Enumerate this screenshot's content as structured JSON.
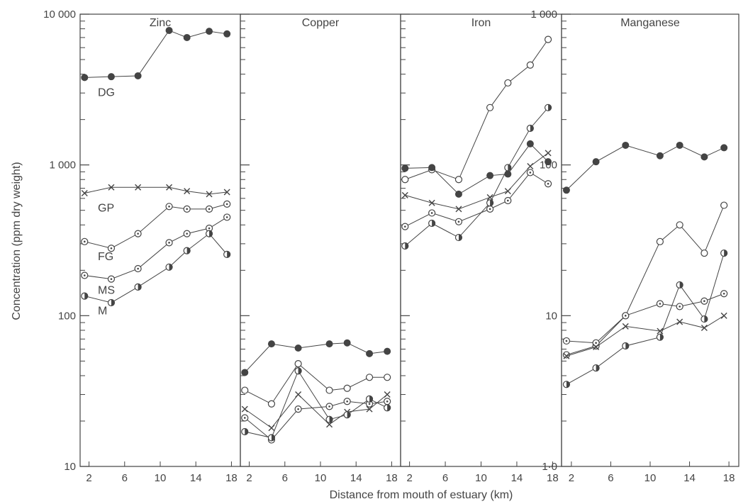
{
  "chart_data": {
    "type": "line",
    "xlabel": "Distance from mouth of estuary (km)",
    "ylabel": "Concentration (ppm dry weight)",
    "x_ticks": [
      2,
      6,
      10,
      14,
      18
    ],
    "xlim": [
      1,
      19
    ],
    "panels": [
      {
        "title": "Zinc",
        "ylim": [
          10,
          10000
        ],
        "y_ticks": [
          10,
          100,
          1000,
          10000
        ],
        "y_tick_labels": [
          "10",
          "100",
          "1 000",
          "10 000"
        ],
        "show_series_labels": true,
        "series": [
          {
            "name": "DG",
            "marker": "filled",
            "x": [
              1.5,
              4.5,
              7.5,
              11,
              13,
              15.5,
              17.5
            ],
            "values": [
              3800,
              3850,
              3900,
              7800,
              7000,
              7700,
              7400
            ]
          },
          {
            "name": "GP",
            "marker": "cross",
            "x": [
              1.5,
              4.5,
              7.5,
              11,
              13,
              15.5,
              17.5
            ],
            "values": [
              650,
              710,
              710,
              710,
              670,
              640,
              660
            ]
          },
          {
            "name": "FG",
            "marker": "dot",
            "x": [
              1.5,
              4.5,
              7.5,
              11,
              13,
              15.5,
              17.5
            ],
            "values": [
              310,
              280,
              350,
              530,
              510,
              510,
              550
            ]
          },
          {
            "name": "MS",
            "marker": "dot",
            "x": [
              1.5,
              4.5,
              7.5,
              11,
              13,
              15.5,
              17.5
            ],
            "values": [
              185,
              175,
              205,
              305,
              350,
              380,
              450
            ]
          },
          {
            "name": "M",
            "marker": "half",
            "x": [
              1.5,
              4.5,
              7.5,
              11,
              13,
              15.5,
              17.5
            ],
            "values": [
              135,
              122,
              155,
              210,
              270,
              350,
              255
            ]
          }
        ]
      },
      {
        "title": "Copper",
        "ylim": [
          10,
          10000
        ],
        "y_ticks": [],
        "y_tick_labels": [],
        "show_series_labels": false,
        "series": [
          {
            "name": "DG",
            "marker": "filled",
            "x": [
              1.5,
              4.5,
              7.5,
              11,
              13,
              15.5,
              17.5
            ],
            "values": [
              42,
              65,
              61,
              65,
              66,
              56,
              58
            ]
          },
          {
            "name": "MS",
            "marker": "open",
            "x": [
              1.5,
              4.5,
              7.5,
              11,
              13,
              15.5,
              17.5
            ],
            "values": [
              32,
              26,
              48,
              32,
              33,
              39,
              39
            ]
          },
          {
            "name": "GP",
            "marker": "cross",
            "x": [
              1.5,
              4.5,
              7.5,
              11,
              13,
              15.5,
              17.5
            ],
            "values": [
              24,
              18,
              30,
              19,
              23,
              24,
              30
            ]
          },
          {
            "name": "FG",
            "marker": "dot",
            "x": [
              1.5,
              4.5,
              7.5,
              11,
              13,
              15.5,
              17.5
            ],
            "values": [
              21,
              15,
              24,
              25,
              27,
              26,
              27
            ]
          },
          {
            "name": "M",
            "marker": "half",
            "x": [
              1.5,
              4.5,
              7.5,
              11,
              13,
              15.5,
              17.5
            ],
            "values": [
              17,
              15.5,
              43,
              20.5,
              22,
              28,
              24.5
            ]
          }
        ]
      },
      {
        "title": "Iron",
        "ylim": [
          10,
          10000
        ],
        "y_ticks": [],
        "y_tick_labels": [],
        "show_series_labels": false,
        "series": [
          {
            "name": "MS",
            "marker": "open",
            "x": [
              1.5,
              4.5,
              7.5,
              11,
              13,
              15.5,
              17.5
            ],
            "values": [
              800,
              930,
              800,
              2400,
              3500,
              4600,
              6800
            ]
          },
          {
            "name": "DG",
            "marker": "filled",
            "x": [
              1.5,
              4.5,
              7.5,
              11,
              13,
              15.5,
              17.5
            ],
            "values": [
              950,
              960,
              640,
              850,
              870,
              1380,
              1050
            ]
          },
          {
            "name": "GP",
            "marker": "cross",
            "x": [
              1.5,
              4.5,
              7.5,
              11,
              13,
              15.5,
              17.5
            ],
            "values": [
              630,
              560,
              510,
              610,
              670,
              980,
              1200
            ]
          },
          {
            "name": "FG",
            "marker": "dot",
            "x": [
              1.5,
              4.5,
              7.5,
              11,
              13,
              15.5,
              17.5
            ],
            "values": [
              390,
              480,
              420,
              510,
              580,
              890,
              750
            ]
          },
          {
            "name": "M",
            "marker": "half",
            "x": [
              1.5,
              4.5,
              7.5,
              11,
              13,
              15.5,
              17.5
            ],
            "values": [
              290,
              410,
              330,
              560,
              960,
              1750,
              2400
            ]
          }
        ]
      },
      {
        "title": "Manganese",
        "ylim": [
          1,
          1000
        ],
        "y_ticks": [
          1,
          10,
          100,
          1000
        ],
        "y_tick_labels": [
          "1·0",
          "10",
          "100",
          "1 000"
        ],
        "show_series_labels": false,
        "series": [
          {
            "name": "DG",
            "marker": "filled",
            "x": [
              1.5,
              4.5,
              7.5,
              11,
              13,
              15.5,
              17.5
            ],
            "values": [
              68,
              105,
              135,
              115,
              135,
              113,
              130
            ]
          },
          {
            "name": "MS",
            "marker": "open",
            "x": [
              1.5,
              4.5,
              7.5,
              11,
              13,
              15.5,
              17.5
            ],
            "values": [
              5.5,
              6.3,
              10,
              31,
              40,
              26,
              54
            ]
          },
          {
            "name": "FG",
            "marker": "dot",
            "x": [
              1.5,
              4.5,
              7.5,
              11,
              13,
              15.5,
              17.5
            ],
            "values": [
              6.8,
              6.6,
              10,
              12,
              11.5,
              12.5,
              14
            ]
          },
          {
            "name": "GP",
            "marker": "cross",
            "x": [
              1.5,
              4.5,
              7.5,
              11,
              13,
              15.5,
              17.5
            ],
            "values": [
              5.4,
              6.2,
              8.5,
              7.9,
              9.1,
              8.3,
              10
            ]
          },
          {
            "name": "M",
            "marker": "half",
            "x": [
              1.5,
              4.5,
              7.5,
              11,
              13,
              15.5,
              17.5
            ],
            "values": [
              3.5,
              4.5,
              6.3,
              7.2,
              16,
              9.5,
              26
            ]
          }
        ]
      }
    ]
  }
}
